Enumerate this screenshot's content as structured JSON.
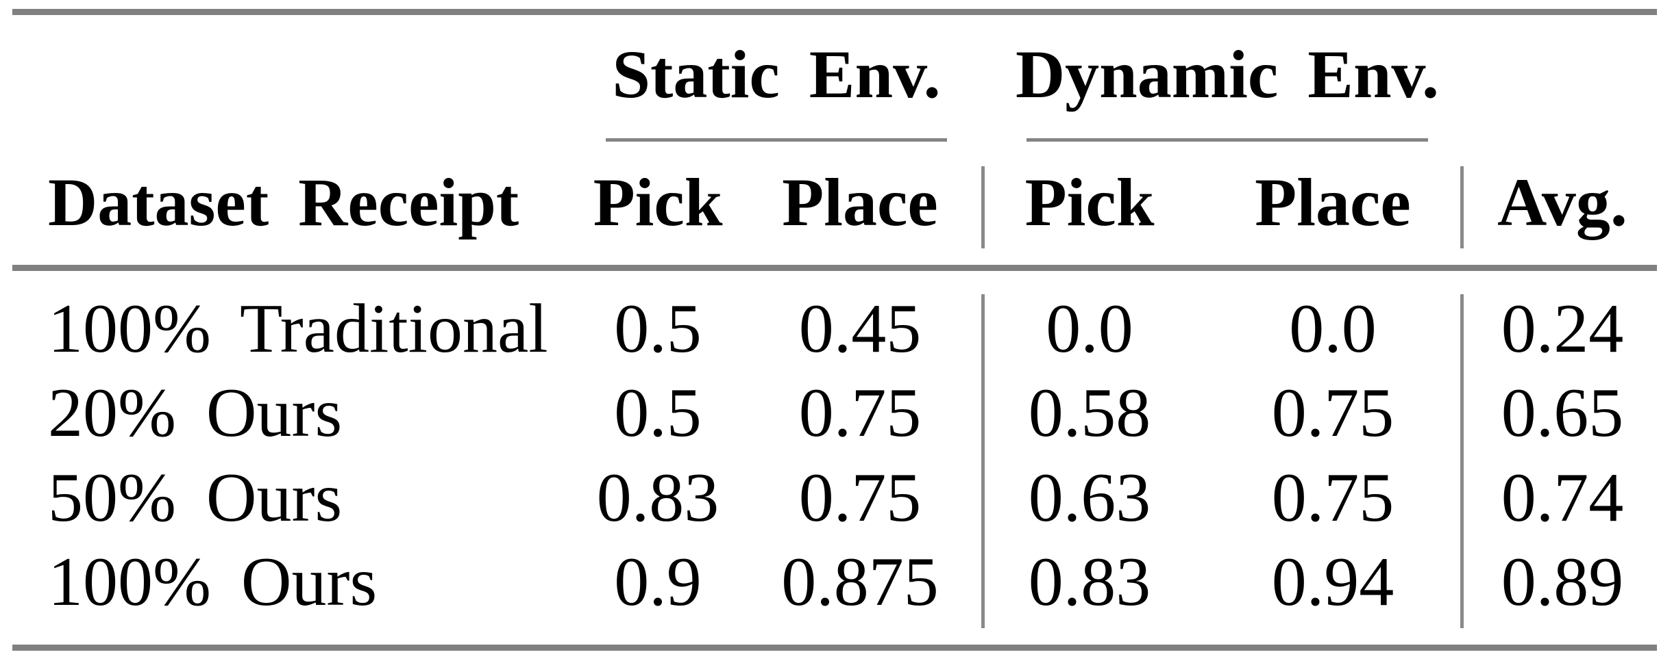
{
  "table": {
    "group_headers": [
      {
        "label": "Static Env."
      },
      {
        "label": "Dynamic Env."
      }
    ],
    "columns": {
      "dataset": "Dataset Receipt",
      "static_pick": "Pick",
      "static_place": "Place",
      "dynamic_pick": "Pick",
      "dynamic_place": "Place",
      "avg": "Avg."
    },
    "rows": [
      {
        "label": "100% Traditional",
        "cells": [
          "0.5",
          "0.45",
          "0.0",
          "0.0",
          "0.24"
        ]
      },
      {
        "label": "20% Ours",
        "cells": [
          "0.5",
          "0.75",
          "0.58",
          "0.75",
          "0.65"
        ]
      },
      {
        "label": "50% Ours",
        "cells": [
          "0.83",
          "0.75",
          "0.63",
          "0.75",
          "0.74"
        ]
      },
      {
        "label": "100% Ours",
        "cells": [
          "0.9",
          "0.875",
          "0.83",
          "0.94",
          "0.89"
        ]
      }
    ],
    "colors": {
      "rule_gray": "#808080",
      "text": "#000000",
      "background": "#ffffff"
    }
  }
}
